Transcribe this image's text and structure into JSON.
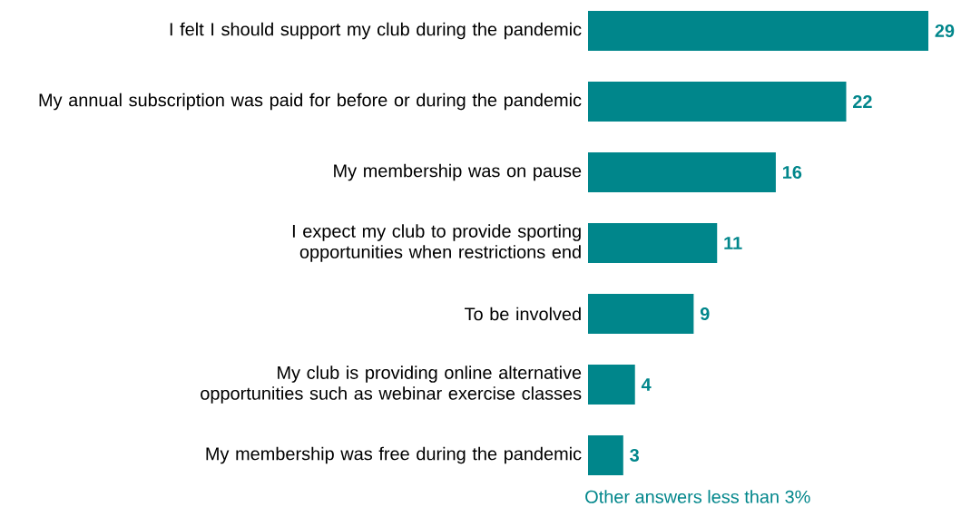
{
  "chart_data": {
    "type": "bar",
    "orientation": "horizontal",
    "categories": [
      "I felt I should support my club during the pandemic",
      "My annual subscription was paid for before or during the pandemic",
      "My membership was on pause",
      "I expect my club to provide sporting opportunities when restrictions end",
      "To be involved",
      "My club is providing online alternative opportunities such as webinar exercise classes",
      "My membership was free during the pandemic"
    ],
    "values": [
      29,
      22,
      16,
      11,
      9,
      4,
      3
    ],
    "color": "#00868b",
    "data_labels": true,
    "annotations": [
      "Other answers less than 3%"
    ]
  }
}
